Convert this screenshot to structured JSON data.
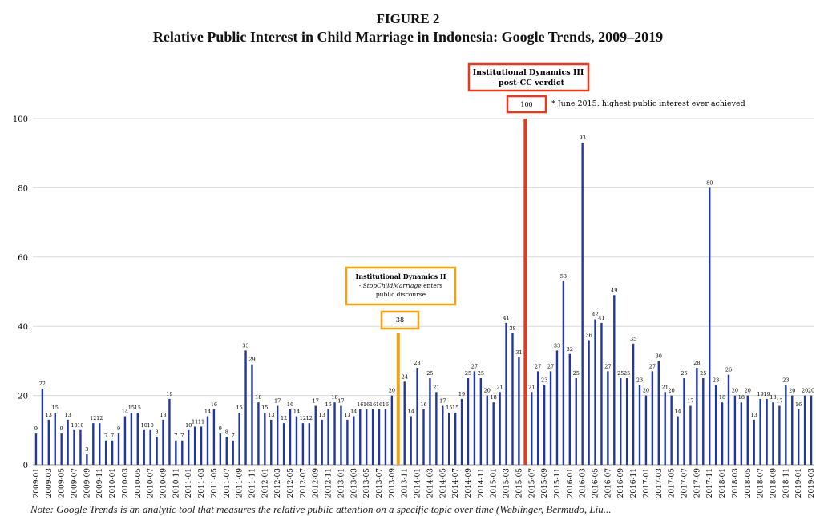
{
  "figure_label": "FIGURE 2",
  "figure_title": "Relative Public Interest in Child Marriage in Indonesia: Google Trends, 2009–2019",
  "note": "Note: Google Trends is an analytic tool that measures the relative public attention on a specific topic over time (Weblinger, Bermudo, Liu...",
  "colors": {
    "bar": "#2136a3",
    "dyn2": "#f5a00f",
    "dyn3": "#e8391d",
    "grid": "#d8d8d8"
  },
  "annotations": {
    "dyn3_title": "Institutional Dynamics III",
    "dyn3_sub": "– post-CC verdict",
    "dyn3_value": "100",
    "dyn3_note": "* June 2015: highest public interest ever achieved",
    "dyn2_title": "Institutional Dynamics II",
    "dyn2_sub_prefix": "- ",
    "dyn2_sub_italic": "StopChildMarriage",
    "dyn2_sub_rest": " enters",
    "dyn2_sub2": "public discourse",
    "dyn2_value": "38"
  },
  "chart_data": {
    "type": "bar",
    "title": "Relative Public Interest in Child Marriage in Indonesia: Google Trends, 2009–2019",
    "ylim": [
      0,
      100
    ],
    "yticks": [
      0,
      20,
      40,
      60,
      80,
      100
    ],
    "grid": true,
    "x_labels": [
      "2009-01",
      "2009-03",
      "2009-05",
      "2009-07",
      "2009-09",
      "2009-11",
      "2010-01",
      "2010-03",
      "2010-05",
      "2010-07",
      "2010-09",
      "2010-11",
      "2011-01",
      "2011-03",
      "2011-05",
      "2011-07",
      "2011-09",
      "2011-11",
      "2012-01",
      "2012-03",
      "2012-05",
      "2012-07",
      "2012-09",
      "2012-11",
      "2013-01",
      "2013-03",
      "2013-05",
      "2013-07",
      "2013-09",
      "2013-11",
      "2014-01",
      "2014-03",
      "2014-05",
      "2014-07",
      "2014-09",
      "2014-11",
      "2015-01",
      "2015-03",
      "2015-05",
      "2015-07",
      "2015-09",
      "2015-11",
      "2016-01",
      "2016-03",
      "2016-05",
      "2016-07",
      "2016-09",
      "2016-11",
      "2017-01",
      "2017-03",
      "2017-05",
      "2017-07",
      "2017-09",
      "2017-11",
      "2018-01",
      "2018-03",
      "2018-05",
      "2018-07",
      "2018-09",
      "2018-11",
      "2019-01",
      "2019-03"
    ],
    "start": "2009-01",
    "values": [
      9,
      22,
      13,
      15,
      9,
      13,
      10,
      10,
      3,
      12,
      12,
      7,
      7,
      9,
      14,
      15,
      15,
      10,
      10,
      8,
      13,
      19,
      7,
      7,
      10,
      11,
      11,
      14,
      16,
      9,
      8,
      7,
      15,
      33,
      29,
      18,
      15,
      13,
      17,
      12,
      16,
      14,
      12,
      12,
      17,
      13,
      16,
      18,
      17,
      13,
      14,
      16,
      16,
      16,
      16,
      16,
      20,
      38,
      24,
      14,
      28,
      16,
      25,
      21,
      17,
      15,
      15,
      19,
      25,
      27,
      25,
      20,
      18,
      21,
      41,
      38,
      31,
      100,
      21,
      27,
      23,
      27,
      33,
      53,
      32,
      25,
      93,
      36,
      42,
      41,
      27,
      49,
      25,
      25,
      35,
      23,
      20,
      27,
      30,
      21,
      20,
      14,
      25,
      17,
      28,
      25,
      80,
      23,
      18,
      26,
      20,
      18,
      20,
      13,
      19,
      19,
      18,
      17,
      23,
      20,
      16,
      20,
      20
    ],
    "highlight": {
      "2013-10": "dyn2",
      "2015-06": "dyn3"
    }
  }
}
